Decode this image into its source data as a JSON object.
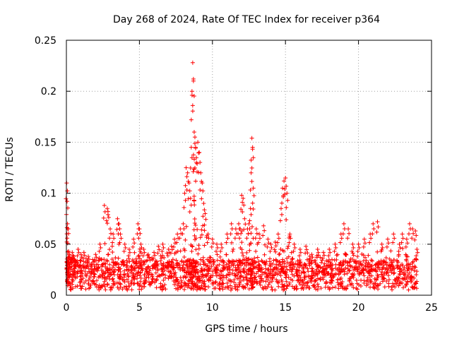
{
  "chart_data": {
    "type": "scatter",
    "title": "Day 268 of 2024, Rate Of TEC Index for receiver p364",
    "xlabel": "GPS time / hours",
    "ylabel": "ROTI / TECUs",
    "xlim": [
      0,
      25
    ],
    "ylim": [
      0,
      0.25
    ],
    "xticks": [
      0,
      5,
      10,
      15,
      20,
      25
    ],
    "xtick_labels": [
      "0",
      "5",
      "10",
      "15",
      "20",
      "25"
    ],
    "yticks": [
      0,
      0.05,
      0.1,
      0.15,
      0.2,
      0.25
    ],
    "ytick_labels": [
      "0",
      "0.05",
      "0.1",
      "0.15",
      "0.2",
      "0.25"
    ],
    "grid": true,
    "marker": "+",
    "color": "#ff0000",
    "series": [
      {
        "name": "ROTI",
        "x": [
          0.02,
          0.05,
          0.08,
          0.1,
          0.15,
          0.2,
          0.3,
          0.4,
          0.5,
          0.6,
          0.8,
          1.0,
          1.2,
          1.5,
          1.8,
          2.0,
          2.3,
          2.6,
          2.8,
          2.85,
          3.0,
          3.2,
          3.5,
          3.6,
          3.7,
          4.0,
          4.3,
          4.6,
          4.9,
          5.0,
          5.1,
          5.3,
          5.6,
          6.0,
          6.3,
          6.6,
          7.0,
          7.2,
          7.4,
          7.6,
          7.8,
          8.0,
          8.1,
          8.2,
          8.3,
          8.4,
          8.5,
          8.55,
          8.6,
          8.65,
          8.7,
          8.75,
          8.8,
          8.85,
          8.9,
          9.0,
          9.1,
          9.2,
          9.3,
          9.4,
          9.5,
          9.7,
          10.0,
          10.3,
          10.6,
          11.0,
          11.3,
          11.6,
          11.8,
          11.9,
          12.0,
          12.1,
          12.2,
          12.4,
          12.5,
          12.6,
          12.65,
          12.7,
          12.75,
          12.8,
          13.0,
          13.2,
          13.5,
          13.8,
          14.0,
          14.3,
          14.5,
          14.7,
          14.8,
          14.9,
          15.0,
          15.1,
          15.3,
          15.6,
          16.0,
          16.4,
          16.8,
          17.2,
          17.6,
          18.0,
          18.4,
          18.8,
          19.0,
          19.3,
          19.6,
          20.0,
          20.4,
          20.8,
          21.0,
          21.3,
          21.6,
          22.0,
          22.4,
          22.8,
          23.0,
          23.3,
          23.5,
          23.7,
          23.9,
          24.0
        ],
        "values": [
          0.11,
          0.092,
          0.07,
          0.065,
          0.043,
          0.04,
          0.035,
          0.042,
          0.038,
          0.03,
          0.045,
          0.04,
          0.042,
          0.038,
          0.035,
          0.04,
          0.05,
          0.088,
          0.085,
          0.082,
          0.065,
          0.06,
          0.075,
          0.07,
          0.06,
          0.05,
          0.045,
          0.055,
          0.07,
          0.065,
          0.05,
          0.045,
          0.04,
          0.042,
          0.048,
          0.05,
          0.045,
          0.048,
          0.055,
          0.06,
          0.065,
          0.07,
          0.1,
          0.125,
          0.12,
          0.11,
          0.095,
          0.145,
          0.2,
          0.228,
          0.21,
          0.16,
          0.155,
          0.145,
          0.13,
          0.15,
          0.14,
          0.12,
          0.11,
          0.09,
          0.08,
          0.06,
          0.055,
          0.05,
          0.05,
          0.06,
          0.07,
          0.065,
          0.07,
          0.065,
          0.098,
          0.095,
          0.075,
          0.065,
          0.07,
          0.085,
          0.12,
          0.154,
          0.145,
          0.105,
          0.065,
          0.06,
          0.068,
          0.055,
          0.05,
          0.052,
          0.06,
          0.085,
          0.105,
          0.112,
          0.115,
          0.1,
          0.06,
          0.05,
          0.045,
          0.048,
          0.04,
          0.045,
          0.042,
          0.045,
          0.05,
          0.06,
          0.07,
          0.065,
          0.05,
          0.05,
          0.055,
          0.06,
          0.07,
          0.072,
          0.05,
          0.055,
          0.06,
          0.05,
          0.06,
          0.055,
          0.07,
          0.065,
          0.063,
          0.045
        ]
      }
    ]
  }
}
